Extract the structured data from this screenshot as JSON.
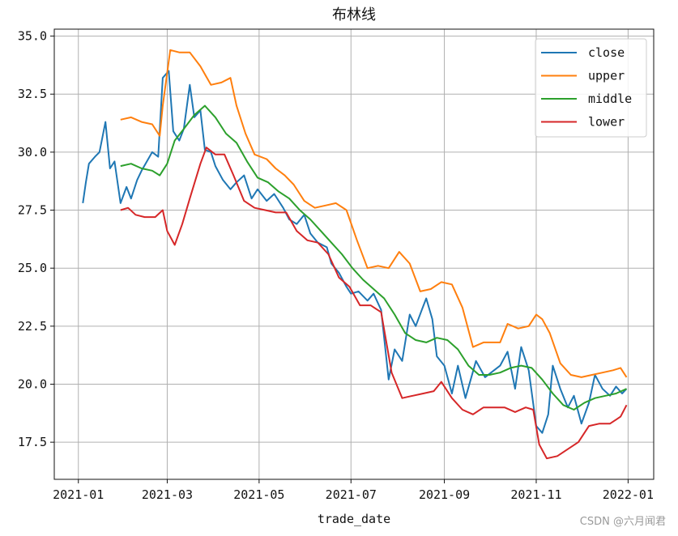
{
  "chart_data": {
    "type": "line",
    "title": "布林线",
    "xlabel": "trade_date",
    "ylabel": "",
    "x_tick_labels": [
      "2021-01",
      "2021-03",
      "2021-05",
      "2021-07",
      "2021-09",
      "2021-11",
      "2022-01"
    ],
    "x_tick_dates": [
      "2021-01-01",
      "2021-03-01",
      "2021-05-01",
      "2021-07-01",
      "2021-09-01",
      "2021-11-01",
      "2022-01-01"
    ],
    "xlim": [
      "2020-12-16",
      "2022-01-18"
    ],
    "y_tick_values": [
      17.5,
      20.0,
      22.5,
      25.0,
      27.5,
      30.0,
      32.5,
      35.0
    ],
    "y_tick_labels": [
      "17.5",
      "20.0",
      "22.5",
      "25.0",
      "27.5",
      "30.0",
      "32.5",
      "35.0"
    ],
    "ylim": [
      15.9,
      35.3
    ],
    "grid": true,
    "legend_position": "top-right",
    "series": [
      {
        "name": "close",
        "color": "#1f77b4",
        "points": [
          [
            "2021-01-04",
            27.8
          ],
          [
            "2021-01-06",
            28.7
          ],
          [
            "2021-01-08",
            29.5
          ],
          [
            "2021-01-12",
            29.8
          ],
          [
            "2021-01-15",
            30.0
          ],
          [
            "2021-01-19",
            31.3
          ],
          [
            "2021-01-22",
            29.3
          ],
          [
            "2021-01-25",
            29.6
          ],
          [
            "2021-01-29",
            27.8
          ],
          [
            "2021-02-02",
            28.5
          ],
          [
            "2021-02-05",
            28.0
          ],
          [
            "2021-02-09",
            28.8
          ],
          [
            "2021-02-12",
            29.2
          ],
          [
            "2021-02-19",
            30.0
          ],
          [
            "2021-02-23",
            29.8
          ],
          [
            "2021-02-26",
            33.2
          ],
          [
            "2021-03-02",
            33.5
          ],
          [
            "2021-03-05",
            30.9
          ],
          [
            "2021-03-09",
            30.5
          ],
          [
            "2021-03-12",
            31.0
          ],
          [
            "2021-03-16",
            32.9
          ],
          [
            "2021-03-19",
            31.5
          ],
          [
            "2021-03-23",
            31.8
          ],
          [
            "2021-03-26",
            30.1
          ],
          [
            "2021-03-30",
            30.0
          ],
          [
            "2021-04-02",
            29.4
          ],
          [
            "2021-04-07",
            28.8
          ],
          [
            "2021-04-12",
            28.4
          ],
          [
            "2021-04-16",
            28.7
          ],
          [
            "2021-04-21",
            29.0
          ],
          [
            "2021-04-26",
            28.0
          ],
          [
            "2021-04-30",
            28.4
          ],
          [
            "2021-05-06",
            27.9
          ],
          [
            "2021-05-11",
            28.2
          ],
          [
            "2021-05-17",
            27.6
          ],
          [
            "2021-05-21",
            27.1
          ],
          [
            "2021-05-26",
            26.9
          ],
          [
            "2021-05-31",
            27.3
          ],
          [
            "2021-06-04",
            26.5
          ],
          [
            "2021-06-09",
            26.1
          ],
          [
            "2021-06-15",
            25.9
          ],
          [
            "2021-06-18",
            25.2
          ],
          [
            "2021-06-23",
            24.8
          ],
          [
            "2021-06-28",
            24.2
          ],
          [
            "2021-07-01",
            23.9
          ],
          [
            "2021-07-06",
            24.0
          ],
          [
            "2021-07-12",
            23.6
          ],
          [
            "2021-07-16",
            23.9
          ],
          [
            "2021-07-21",
            23.2
          ],
          [
            "2021-07-26",
            20.2
          ],
          [
            "2021-07-30",
            21.5
          ],
          [
            "2021-08-04",
            21.0
          ],
          [
            "2021-08-09",
            23.0
          ],
          [
            "2021-08-13",
            22.5
          ],
          [
            "2021-08-17",
            23.2
          ],
          [
            "2021-08-20",
            23.7
          ],
          [
            "2021-08-24",
            22.8
          ],
          [
            "2021-08-27",
            21.2
          ],
          [
            "2021-09-01",
            20.8
          ],
          [
            "2021-09-06",
            19.6
          ],
          [
            "2021-09-10",
            20.8
          ],
          [
            "2021-09-15",
            19.4
          ],
          [
            "2021-09-22",
            21.0
          ],
          [
            "2021-09-28",
            20.3
          ],
          [
            "2021-10-08",
            20.8
          ],
          [
            "2021-10-13",
            21.4
          ],
          [
            "2021-10-18",
            19.8
          ],
          [
            "2021-10-22",
            21.6
          ],
          [
            "2021-10-27",
            20.6
          ],
          [
            "2021-11-01",
            18.2
          ],
          [
            "2021-11-05",
            17.9
          ],
          [
            "2021-11-09",
            18.7
          ],
          [
            "2021-11-12",
            20.8
          ],
          [
            "2021-11-17",
            19.8
          ],
          [
            "2021-11-22",
            19.0
          ],
          [
            "2021-11-26",
            19.5
          ],
          [
            "2021-12-01",
            18.3
          ],
          [
            "2021-12-06",
            19.2
          ],
          [
            "2021-12-10",
            20.4
          ],
          [
            "2021-12-15",
            19.8
          ],
          [
            "2021-12-20",
            19.5
          ],
          [
            "2021-12-24",
            19.9
          ],
          [
            "2021-12-28",
            19.6
          ],
          [
            "2021-12-31",
            19.8
          ]
        ]
      },
      {
        "name": "upper",
        "color": "#ff7f0e",
        "points": [
          [
            "2021-01-29",
            31.4
          ],
          [
            "2021-02-05",
            31.5
          ],
          [
            "2021-02-12",
            31.3
          ],
          [
            "2021-02-19",
            31.2
          ],
          [
            "2021-02-24",
            30.7
          ],
          [
            "2021-02-26",
            32.0
          ],
          [
            "2021-03-03",
            34.4
          ],
          [
            "2021-03-09",
            34.3
          ],
          [
            "2021-03-16",
            34.3
          ],
          [
            "2021-03-23",
            33.7
          ],
          [
            "2021-03-30",
            32.9
          ],
          [
            "2021-04-06",
            33.0
          ],
          [
            "2021-04-12",
            33.2
          ],
          [
            "2021-04-16",
            32.0
          ],
          [
            "2021-04-22",
            30.8
          ],
          [
            "2021-04-28",
            29.9
          ],
          [
            "2021-05-06",
            29.7
          ],
          [
            "2021-05-12",
            29.3
          ],
          [
            "2021-05-18",
            29.0
          ],
          [
            "2021-05-24",
            28.6
          ],
          [
            "2021-05-31",
            27.9
          ],
          [
            "2021-06-07",
            27.6
          ],
          [
            "2021-06-14",
            27.7
          ],
          [
            "2021-06-21",
            27.8
          ],
          [
            "2021-06-28",
            27.5
          ],
          [
            "2021-07-05",
            26.2
          ],
          [
            "2021-07-12",
            25.0
          ],
          [
            "2021-07-19",
            25.1
          ],
          [
            "2021-07-26",
            25.0
          ],
          [
            "2021-08-02",
            25.7
          ],
          [
            "2021-08-09",
            25.2
          ],
          [
            "2021-08-16",
            24.0
          ],
          [
            "2021-08-23",
            24.1
          ],
          [
            "2021-08-30",
            24.4
          ],
          [
            "2021-09-06",
            24.3
          ],
          [
            "2021-09-13",
            23.3
          ],
          [
            "2021-09-20",
            21.6
          ],
          [
            "2021-09-27",
            21.8
          ],
          [
            "2021-10-08",
            21.8
          ],
          [
            "2021-10-13",
            22.6
          ],
          [
            "2021-10-20",
            22.4
          ],
          [
            "2021-10-27",
            22.5
          ],
          [
            "2021-11-01",
            23.0
          ],
          [
            "2021-11-05",
            22.8
          ],
          [
            "2021-11-10",
            22.2
          ],
          [
            "2021-11-17",
            20.9
          ],
          [
            "2021-11-24",
            20.4
          ],
          [
            "2021-12-01",
            20.3
          ],
          [
            "2021-12-08",
            20.4
          ],
          [
            "2021-12-15",
            20.5
          ],
          [
            "2021-12-22",
            20.6
          ],
          [
            "2021-12-27",
            20.7
          ],
          [
            "2021-12-31",
            20.3
          ]
        ]
      },
      {
        "name": "middle",
        "color": "#2ca02c",
        "points": [
          [
            "2021-01-29",
            29.4
          ],
          [
            "2021-02-05",
            29.5
          ],
          [
            "2021-02-12",
            29.3
          ],
          [
            "2021-02-19",
            29.2
          ],
          [
            "2021-02-24",
            29.0
          ],
          [
            "2021-03-01",
            29.5
          ],
          [
            "2021-03-06",
            30.5
          ],
          [
            "2021-03-12",
            31.0
          ],
          [
            "2021-03-19",
            31.6
          ],
          [
            "2021-03-26",
            32.0
          ],
          [
            "2021-04-02",
            31.5
          ],
          [
            "2021-04-09",
            30.8
          ],
          [
            "2021-04-16",
            30.4
          ],
          [
            "2021-04-23",
            29.6
          ],
          [
            "2021-04-30",
            28.9
          ],
          [
            "2021-05-07",
            28.7
          ],
          [
            "2021-05-14",
            28.3
          ],
          [
            "2021-05-21",
            28.0
          ],
          [
            "2021-05-28",
            27.5
          ],
          [
            "2021-06-04",
            27.1
          ],
          [
            "2021-06-11",
            26.6
          ],
          [
            "2021-06-18",
            26.1
          ],
          [
            "2021-06-25",
            25.6
          ],
          [
            "2021-07-02",
            25.0
          ],
          [
            "2021-07-09",
            24.5
          ],
          [
            "2021-07-16",
            24.1
          ],
          [
            "2021-07-23",
            23.7
          ],
          [
            "2021-07-30",
            23.0
          ],
          [
            "2021-08-06",
            22.2
          ],
          [
            "2021-08-13",
            21.9
          ],
          [
            "2021-08-20",
            21.8
          ],
          [
            "2021-08-27",
            22.0
          ],
          [
            "2021-09-03",
            21.9
          ],
          [
            "2021-09-10",
            21.5
          ],
          [
            "2021-09-17",
            20.8
          ],
          [
            "2021-09-24",
            20.4
          ],
          [
            "2021-10-01",
            20.4
          ],
          [
            "2021-10-08",
            20.5
          ],
          [
            "2021-10-15",
            20.7
          ],
          [
            "2021-10-22",
            20.8
          ],
          [
            "2021-10-29",
            20.7
          ],
          [
            "2021-11-05",
            20.2
          ],
          [
            "2021-11-12",
            19.6
          ],
          [
            "2021-11-19",
            19.1
          ],
          [
            "2021-11-26",
            18.9
          ],
          [
            "2021-12-03",
            19.2
          ],
          [
            "2021-12-10",
            19.4
          ],
          [
            "2021-12-17",
            19.5
          ],
          [
            "2021-12-24",
            19.6
          ],
          [
            "2021-12-31",
            19.8
          ]
        ]
      },
      {
        "name": "lower",
        "color": "#d62728",
        "points": [
          [
            "2021-01-29",
            27.5
          ],
          [
            "2021-02-03",
            27.6
          ],
          [
            "2021-02-08",
            27.3
          ],
          [
            "2021-02-14",
            27.2
          ],
          [
            "2021-02-21",
            27.2
          ],
          [
            "2021-02-26",
            27.5
          ],
          [
            "2021-03-01",
            26.6
          ],
          [
            "2021-03-06",
            26.0
          ],
          [
            "2021-03-11",
            26.9
          ],
          [
            "2021-03-16",
            28.0
          ],
          [
            "2021-03-23",
            29.5
          ],
          [
            "2021-03-27",
            30.2
          ],
          [
            "2021-04-02",
            29.9
          ],
          [
            "2021-04-08",
            29.9
          ],
          [
            "2021-04-14",
            29.0
          ],
          [
            "2021-04-21",
            27.9
          ],
          [
            "2021-04-28",
            27.6
          ],
          [
            "2021-05-05",
            27.5
          ],
          [
            "2021-05-12",
            27.4
          ],
          [
            "2021-05-19",
            27.4
          ],
          [
            "2021-05-26",
            26.6
          ],
          [
            "2021-06-02",
            26.2
          ],
          [
            "2021-06-09",
            26.1
          ],
          [
            "2021-06-16",
            25.6
          ],
          [
            "2021-06-23",
            24.6
          ],
          [
            "2021-06-30",
            24.2
          ],
          [
            "2021-07-07",
            23.4
          ],
          [
            "2021-07-14",
            23.4
          ],
          [
            "2021-07-21",
            23.1
          ],
          [
            "2021-07-28",
            20.5
          ],
          [
            "2021-08-04",
            19.4
          ],
          [
            "2021-08-11",
            19.5
          ],
          [
            "2021-08-18",
            19.6
          ],
          [
            "2021-08-25",
            19.7
          ],
          [
            "2021-08-30",
            20.1
          ],
          [
            "2021-09-06",
            19.4
          ],
          [
            "2021-09-13",
            18.9
          ],
          [
            "2021-09-20",
            18.7
          ],
          [
            "2021-09-27",
            19.0
          ],
          [
            "2021-10-04",
            19.0
          ],
          [
            "2021-10-11",
            19.0
          ],
          [
            "2021-10-18",
            18.8
          ],
          [
            "2021-10-25",
            19.0
          ],
          [
            "2021-10-30",
            18.9
          ],
          [
            "2021-11-03",
            17.4
          ],
          [
            "2021-11-08",
            16.8
          ],
          [
            "2021-11-15",
            16.9
          ],
          [
            "2021-11-22",
            17.2
          ],
          [
            "2021-11-29",
            17.5
          ],
          [
            "2021-12-06",
            18.2
          ],
          [
            "2021-12-13",
            18.3
          ],
          [
            "2021-12-20",
            18.3
          ],
          [
            "2021-12-27",
            18.6
          ],
          [
            "2021-12-31",
            19.1
          ]
        ]
      }
    ]
  },
  "watermark": "CSDN @六月闻君"
}
